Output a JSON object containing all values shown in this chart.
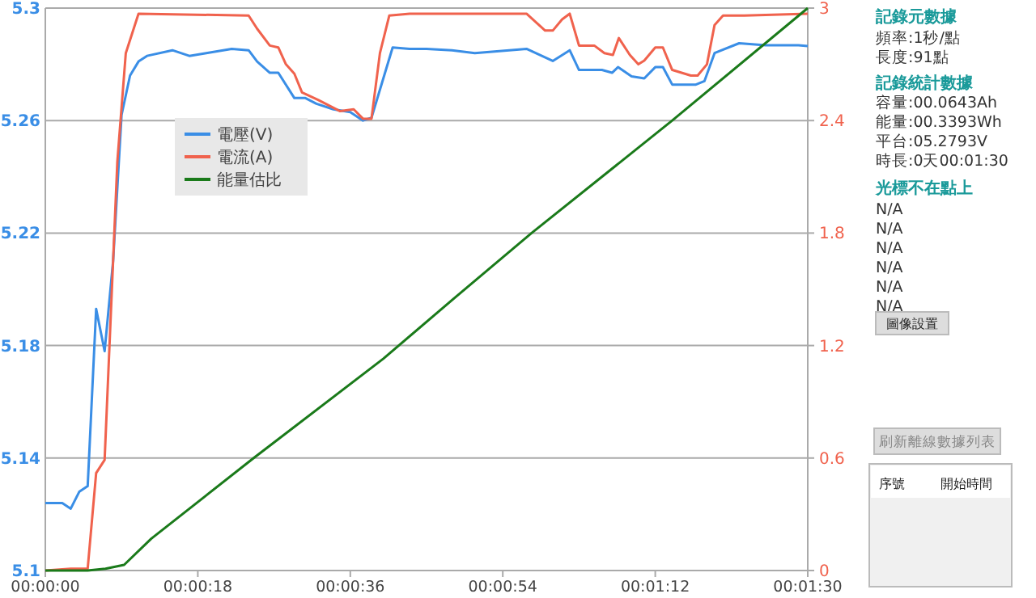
{
  "chart_data": {
    "type": "line",
    "xlim": [
      0,
      90
    ],
    "xticks": [
      {
        "value": 0,
        "label": "00:00:00"
      },
      {
        "value": 18,
        "label": "00:00:18"
      },
      {
        "value": 36,
        "label": "00:00:36"
      },
      {
        "value": 54,
        "label": "00:00:54"
      },
      {
        "value": 72,
        "label": "00:01:12"
      },
      {
        "value": 90,
        "label": "00:01:30"
      }
    ],
    "ylim": [
      5.1,
      5.3
    ],
    "yticks": [
      5.1,
      5.14,
      5.18,
      5.22,
      5.26,
      5.3
    ],
    "y2lim": [
      0,
      3
    ],
    "y2ticks": [
      0,
      0.6,
      1.2,
      1.8,
      2.4,
      3
    ],
    "grid": "y",
    "legend": "top left",
    "marker": "none",
    "line_style": "solid",
    "series": [
      {
        "name": "電壓(V)",
        "color": "#3a8ee6",
        "x": [
          0,
          2,
          3,
          4,
          5,
          6,
          7,
          8,
          9,
          10,
          11,
          12,
          15,
          17,
          19,
          22,
          24,
          25,
          26.5,
          27.5,
          29.4,
          30.7,
          32,
          34,
          36,
          37.5,
          38.5,
          40,
          41,
          43,
          45,
          48,
          50.7,
          56.8,
          59.9,
          61.9,
          63,
          65.7,
          66.9,
          67.6,
          69.2,
          70.7,
          72,
          72.9,
          74,
          76.8,
          77.8,
          79,
          81.9,
          85,
          88.9,
          90
        ],
        "values": [
          5.124,
          5.124,
          5.122,
          5.128,
          5.13,
          5.193,
          5.178,
          5.21,
          5.262,
          5.276,
          5.281,
          5.283,
          5.285,
          5.283,
          5.284,
          5.2855,
          5.285,
          5.281,
          5.277,
          5.277,
          5.268,
          5.268,
          5.266,
          5.264,
          5.263,
          5.26,
          5.261,
          5.276,
          5.286,
          5.2855,
          5.2855,
          5.285,
          5.284,
          5.2855,
          5.2812,
          5.285,
          5.278,
          5.278,
          5.277,
          5.279,
          5.2757,
          5.275,
          5.279,
          5.279,
          5.2728,
          5.2728,
          5.274,
          5.284,
          5.2875,
          5.2868,
          5.2868,
          5.2865
        ]
      },
      {
        "name": "電流(A)",
        "color": "#f0624d",
        "axis": "y2",
        "x": [
          0,
          3,
          5,
          6,
          7,
          8.5,
          9.5,
          11,
          24,
          25,
          26.5,
          27.5,
          28.4,
          29.4,
          30.3,
          32.2,
          34.8,
          36.4,
          37.5,
          38.5,
          39.5,
          40.6,
          43,
          56.8,
          59,
          59.9,
          61,
          61.9,
          63,
          64.8,
          66,
          67,
          67.7,
          69,
          70,
          70.7,
          72,
          72.9,
          74,
          76.2,
          77,
          78.1,
          79,
          80,
          82.5,
          90
        ],
        "values": [
          0,
          0.01,
          0.01,
          0.52,
          0.59,
          2.18,
          2.76,
          2.97,
          2.96,
          2.89,
          2.8,
          2.79,
          2.7,
          2.65,
          2.55,
          2.51,
          2.45,
          2.46,
          2.41,
          2.41,
          2.76,
          2.96,
          2.97,
          2.97,
          2.88,
          2.88,
          2.94,
          2.97,
          2.8,
          2.8,
          2.76,
          2.75,
          2.84,
          2.75,
          2.7,
          2.72,
          2.79,
          2.79,
          2.67,
          2.64,
          2.64,
          2.7,
          2.91,
          2.96,
          2.96,
          2.97
        ]
      },
      {
        "name": "能量估比",
        "color": "#1a7a1a",
        "axis": "y2",
        "x": [
          0,
          5,
          7.1,
          9.3,
          12.5,
          24.6,
          39.9,
          48.2,
          57.4,
          74,
          90
        ],
        "values": [
          0,
          0,
          0.01,
          0.03,
          0.17,
          0.6,
          1.13,
          1.45,
          1.8,
          2.4,
          3
        ]
      }
    ],
    "annotations": [
      "記錄元數據",
      "頻率:1秒/點",
      "長度:91點",
      "記錄統計數據",
      "容量:00.0643Ah",
      "能量:00.3393Wh",
      "平台:05.2793V",
      "時長:0天00:01:30",
      "光標不在點上",
      "N/A",
      "N/A",
      "N/A",
      "N/A",
      "N/A",
      "N/A",
      "圖像設置",
      "刷新離線數據列表",
      "序號",
      "開始時間"
    ]
  }
}
